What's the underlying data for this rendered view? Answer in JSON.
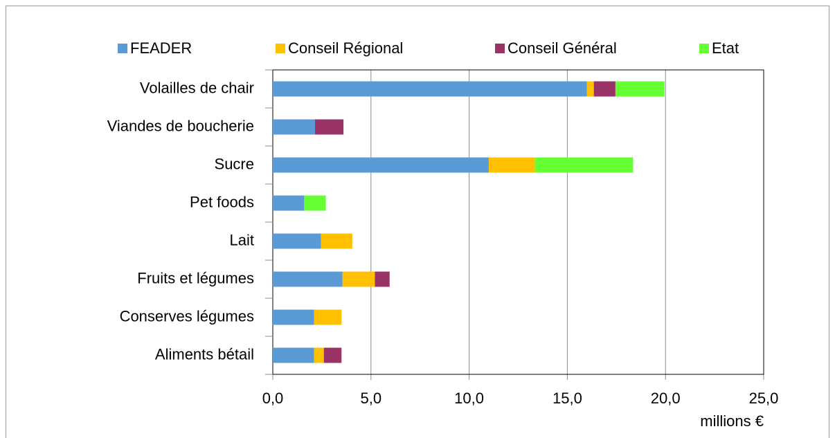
{
  "chart_data": {
    "type": "stacked-barh",
    "categories": [
      "Volailles de chair",
      "Viandes de boucherie",
      "Sucre",
      "Pet foods",
      "Lait",
      "Fruits et légumes",
      "Conserves légumes",
      "Aliments bétail"
    ],
    "series": [
      {
        "name": "FEADER",
        "color": "#5b9bd5",
        "values": [
          16.0,
          2.15,
          11.0,
          1.6,
          2.45,
          3.55,
          2.1,
          2.1
        ]
      },
      {
        "name": "Conseil Régional",
        "color": "#ffc000",
        "values": [
          0.35,
          0,
          2.35,
          0,
          1.6,
          1.65,
          1.4,
          0.5
        ]
      },
      {
        "name": "Conseil Général",
        "color": "#993366",
        "values": [
          1.1,
          1.45,
          0,
          0,
          0,
          0.75,
          0,
          0.9
        ]
      },
      {
        "name": "Etat",
        "color": "#66ff33",
        "values": [
          2.5,
          0,
          5.0,
          1.1,
          0,
          0,
          0,
          0
        ]
      }
    ],
    "xlabel": "millions €",
    "xlim": [
      0,
      25
    ],
    "xticks": [
      {
        "value": 0,
        "label": "0,0"
      },
      {
        "value": 5,
        "label": "5,0"
      },
      {
        "value": 10,
        "label": "10,0"
      },
      {
        "value": 15,
        "label": "15,0"
      },
      {
        "value": 20,
        "label": "20,0"
      },
      {
        "value": 25,
        "label": "25,0"
      }
    ],
    "grid": true,
    "legend": "top"
  }
}
